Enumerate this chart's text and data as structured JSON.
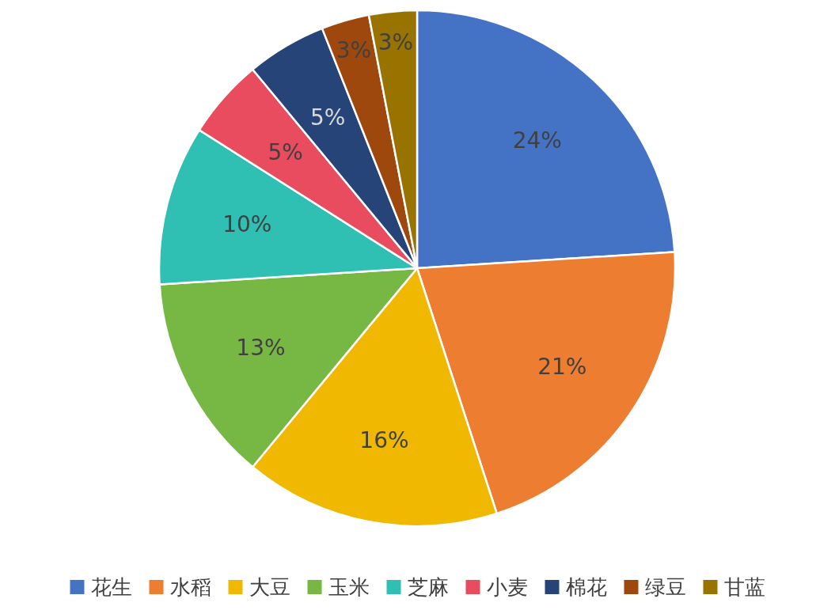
{
  "chart_data": {
    "type": "pie",
    "categories": [
      "花生",
      "水稻",
      "大豆",
      "玉米",
      "芝麻",
      "小麦",
      "棉花",
      "绿豆",
      "甘蓝"
    ],
    "values": [
      24,
      21,
      16,
      13,
      10,
      5,
      5,
      3,
      3
    ],
    "colors": [
      "#4472c4",
      "#ed7d31",
      "#f0b800",
      "#76b843",
      "#2fbfb3",
      "#e84c5e",
      "#264478",
      "#9e480e",
      "#997300"
    ],
    "value_labels": [
      "24%",
      "21%",
      "16%",
      "13%",
      "10%",
      "5%",
      "5%",
      "3%",
      "3%"
    ],
    "legend": "bottom"
  }
}
